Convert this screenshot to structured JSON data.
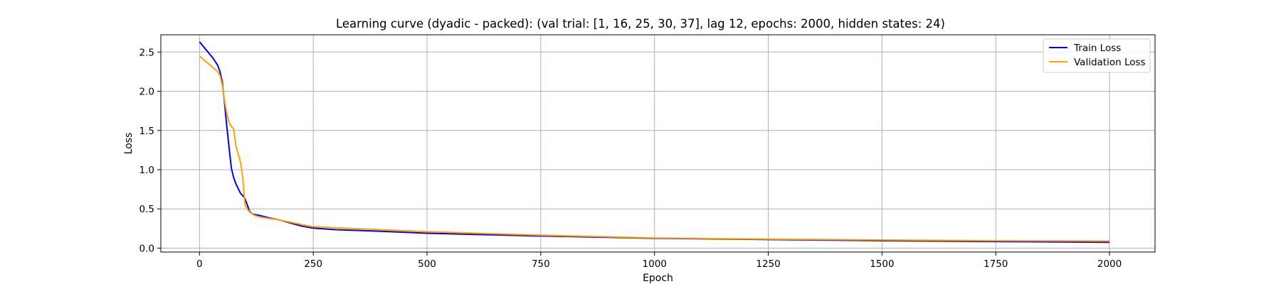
{
  "chart_data": {
    "type": "line",
    "title": "Learning curve (dyadic - packed): (val trial: [1, 16, 25, 30, 37], lag 12, epochs: 2000, hidden states: 24)",
    "xlabel": "Epoch",
    "ylabel": "Loss",
    "xlim": [
      -85,
      2100
    ],
    "ylim": [
      -0.05,
      2.72
    ],
    "xticks": [
      0,
      250,
      500,
      750,
      1000,
      1250,
      1500,
      1750,
      2000
    ],
    "xtick_labels": [
      "0",
      "250",
      "500",
      "750",
      "1000",
      "1250",
      "1500",
      "1750",
      "2000"
    ],
    "yticks": [
      0.0,
      0.5,
      1.0,
      1.5,
      2.0,
      2.5
    ],
    "ytick_labels": [
      "0.0",
      "0.5",
      "1.0",
      "1.5",
      "2.0",
      "2.5"
    ],
    "grid": true,
    "legend_position": "top-right",
    "series": [
      {
        "name": "Train Loss",
        "color": "#0000ff",
        "x": [
          0,
          10,
          20,
          30,
          40,
          45,
          50,
          55,
          60,
          65,
          70,
          75,
          80,
          85,
          90,
          95,
          100,
          105,
          110,
          115,
          120,
          130,
          150,
          175,
          200,
          225,
          250,
          300,
          400,
          500,
          750,
          1000,
          1250,
          1500,
          1750,
          2000
        ],
        "y": [
          2.63,
          2.56,
          2.49,
          2.42,
          2.33,
          2.25,
          2.12,
          1.85,
          1.55,
          1.28,
          1.02,
          0.9,
          0.82,
          0.76,
          0.7,
          0.67,
          0.63,
          0.55,
          0.47,
          0.44,
          0.43,
          0.42,
          0.39,
          0.36,
          0.32,
          0.28,
          0.255,
          0.235,
          0.215,
          0.19,
          0.155,
          0.125,
          0.11,
          0.095,
          0.085,
          0.075
        ]
      },
      {
        "name": "Validation Loss",
        "color": "#ffa500",
        "x": [
          0,
          10,
          20,
          30,
          40,
          45,
          50,
          55,
          60,
          65,
          70,
          75,
          80,
          85,
          90,
          95,
          100,
          105,
          110,
          115,
          120,
          130,
          150,
          175,
          200,
          225,
          250,
          300,
          400,
          500,
          750,
          1000,
          1250,
          1500,
          1750,
          2000
        ],
        "y": [
          2.45,
          2.4,
          2.35,
          2.3,
          2.25,
          2.2,
          2.08,
          1.88,
          1.72,
          1.6,
          1.55,
          1.52,
          1.3,
          1.2,
          1.1,
          0.9,
          0.55,
          0.5,
          0.46,
          0.44,
          0.42,
          0.4,
          0.38,
          0.36,
          0.33,
          0.3,
          0.275,
          0.26,
          0.235,
          0.21,
          0.165,
          0.13,
          0.115,
          0.105,
          0.095,
          0.09
        ]
      }
    ]
  }
}
